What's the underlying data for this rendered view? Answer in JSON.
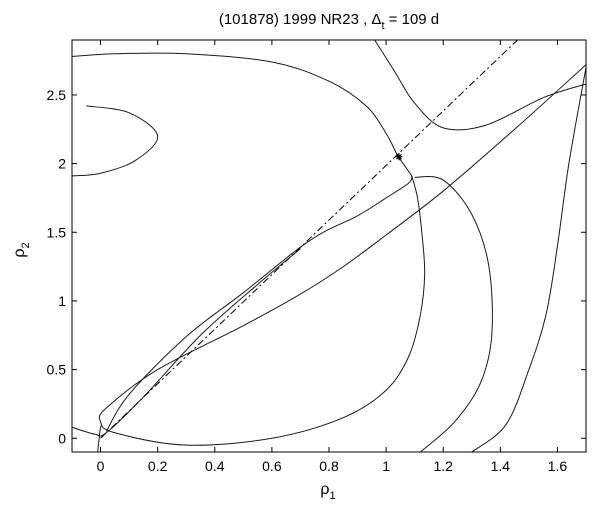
{
  "chart_data": {
    "type": "line",
    "title_main": "(101878) 1999 NR23 , Δ",
    "title_sub": "t",
    "title_tail": " = 109 d",
    "xlabel_main": "ρ",
    "xlabel_sub": "1",
    "ylabel_main": "ρ",
    "ylabel_sub": "2",
    "xlim": [
      -0.1,
      1.7
    ],
    "ylim": [
      -0.1,
      2.9
    ],
    "xticks": [
      0,
      0.2,
      0.4,
      0.6,
      0.8,
      1,
      1.2,
      1.4,
      1.6
    ],
    "xtick_labels": [
      "0",
      "0.2",
      "0.4",
      "0.6",
      "0.8",
      "1",
      "1.2",
      "1.4",
      "1.6"
    ],
    "yticks": [
      0,
      0.5,
      1,
      1.5,
      2,
      2.5
    ],
    "ytick_labels": [
      "0",
      "0.5",
      "1",
      "1.5",
      "2",
      "2.5"
    ],
    "grid": false,
    "line_color": "#1a1a1a",
    "diagonal": {
      "style": "dash-dot",
      "x": [
        0,
        1.46
      ],
      "y": [
        0,
        2.9
      ]
    },
    "marker": {
      "symbol": "*",
      "x": 1.045,
      "y": 2.05
    },
    "curves": [
      {
        "x": [
          -0.1,
          0.05,
          0.3,
          0.6,
          0.8,
          0.93,
          1.0,
          1.04,
          1.07,
          1.09
        ],
        "y": [
          2.78,
          2.8,
          2.8,
          2.74,
          2.6,
          2.42,
          2.22,
          2.06,
          1.97,
          1.91
        ]
      },
      {
        "x": [
          1.09,
          1.11,
          1.125,
          1.135,
          1.12,
          1.08,
          1.0,
          0.85,
          0.6,
          0.3,
          0.05,
          0.0,
          0.02,
          0.2,
          0.5,
          0.7,
          0.85,
          1.0,
          1.2,
          1.45,
          1.7
        ],
        "y": [
          1.91,
          1.75,
          1.5,
          1.2,
          0.9,
          0.6,
          0.35,
          0.15,
          0.0,
          -0.05,
          0.04,
          0.12,
          0.22,
          0.5,
          0.82,
          1.05,
          1.25,
          1.48,
          1.8,
          2.25,
          2.72
        ]
      },
      {
        "x": [
          -0.05,
          0.1,
          0.2,
          0.12,
          0.0,
          -0.1
        ],
        "y": [
          2.42,
          2.37,
          2.2,
          2.02,
          1.93,
          1.91
        ]
      },
      {
        "x": [
          0.96,
          1.03,
          1.1,
          1.2,
          1.35,
          1.55,
          1.7
        ],
        "y": [
          2.9,
          2.67,
          2.44,
          2.26,
          2.28,
          2.48,
          2.58
        ]
      },
      {
        "x": [
          1.1,
          1.2,
          1.3,
          1.36,
          1.37,
          1.33,
          1.24,
          1.12
        ],
        "y": [
          1.9,
          1.88,
          1.63,
          1.25,
          0.75,
          0.4,
          0.12,
          -0.1
        ]
      },
      {
        "x": [
          1.3,
          1.42,
          1.5,
          1.56,
          1.6,
          1.64,
          1.7
        ],
        "y": [
          -0.1,
          0.1,
          0.5,
          0.9,
          1.4,
          2.0,
          2.7
        ]
      },
      {
        "x": [
          -0.1,
          -0.02,
          0.02,
          0.15,
          0.35,
          0.55,
          0.7
        ],
        "y": [
          0.08,
          0.03,
          0.04,
          0.3,
          0.75,
          1.12,
          1.38
        ]
      },
      {
        "x": [
          0.02,
          0.1,
          0.3,
          0.5,
          0.68,
          0.78,
          0.9,
          1.0,
          1.08,
          1.09
        ],
        "y": [
          0.05,
          0.32,
          0.74,
          1.06,
          1.36,
          1.5,
          1.62,
          1.75,
          1.86,
          1.91
        ]
      },
      {
        "x": [
          -0.01,
          -0.005,
          0.0,
          0.005
        ],
        "y": [
          -0.1,
          0.0,
          0.08,
          0.1
        ]
      }
    ]
  }
}
